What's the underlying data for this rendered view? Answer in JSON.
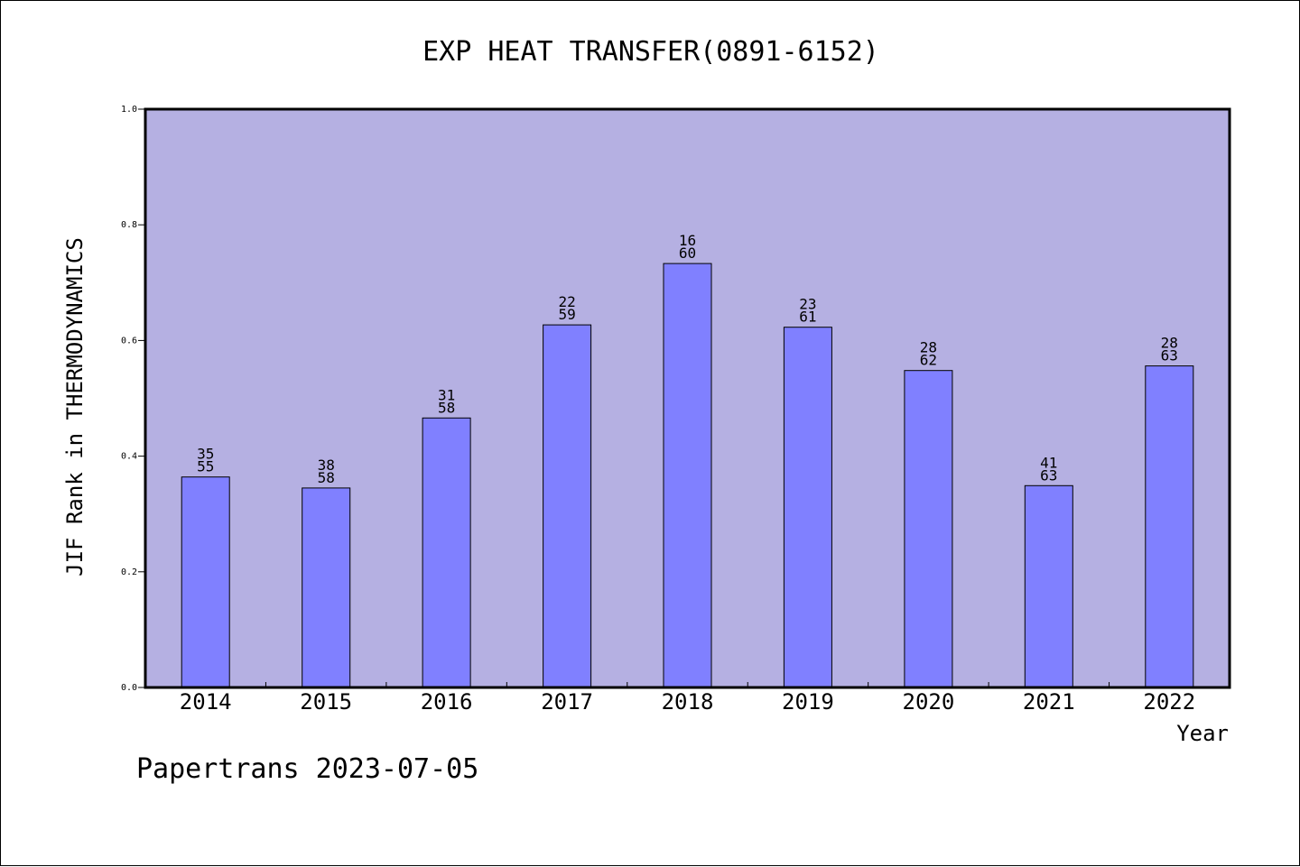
{
  "colors": {
    "plot_background": "#b5b0e2",
    "bar_fill": "#8080ff",
    "bar_stroke": "#000000",
    "axis": "#000000",
    "text": "#000000"
  },
  "footer": "Papertrans 2023-07-05",
  "chart_data": {
    "type": "bar",
    "title": "EXP HEAT TRANSFER(0891-6152)",
    "xlabel": "Year",
    "ylabel": "JIF Rank in THERMODYNAMICS",
    "ylim": [
      0,
      1.0
    ],
    "yticks": [
      "0.0",
      "0.2",
      "0.4",
      "0.6",
      "0.8",
      "1.0"
    ],
    "grid": false,
    "categories": [
      "2014",
      "2015",
      "2016",
      "2017",
      "2018",
      "2019",
      "2020",
      "2021",
      "2022"
    ],
    "values": [
      0.364,
      0.345,
      0.466,
      0.627,
      0.733,
      0.623,
      0.548,
      0.349,
      0.556
    ],
    "bar_labels": [
      [
        "35",
        "55"
      ],
      [
        "38",
        "58"
      ],
      [
        "31",
        "58"
      ],
      [
        "22",
        "59"
      ],
      [
        "16",
        "60"
      ],
      [
        "23",
        "61"
      ],
      [
        "28",
        "62"
      ],
      [
        "41",
        "63"
      ],
      [
        "28",
        "63"
      ]
    ]
  }
}
